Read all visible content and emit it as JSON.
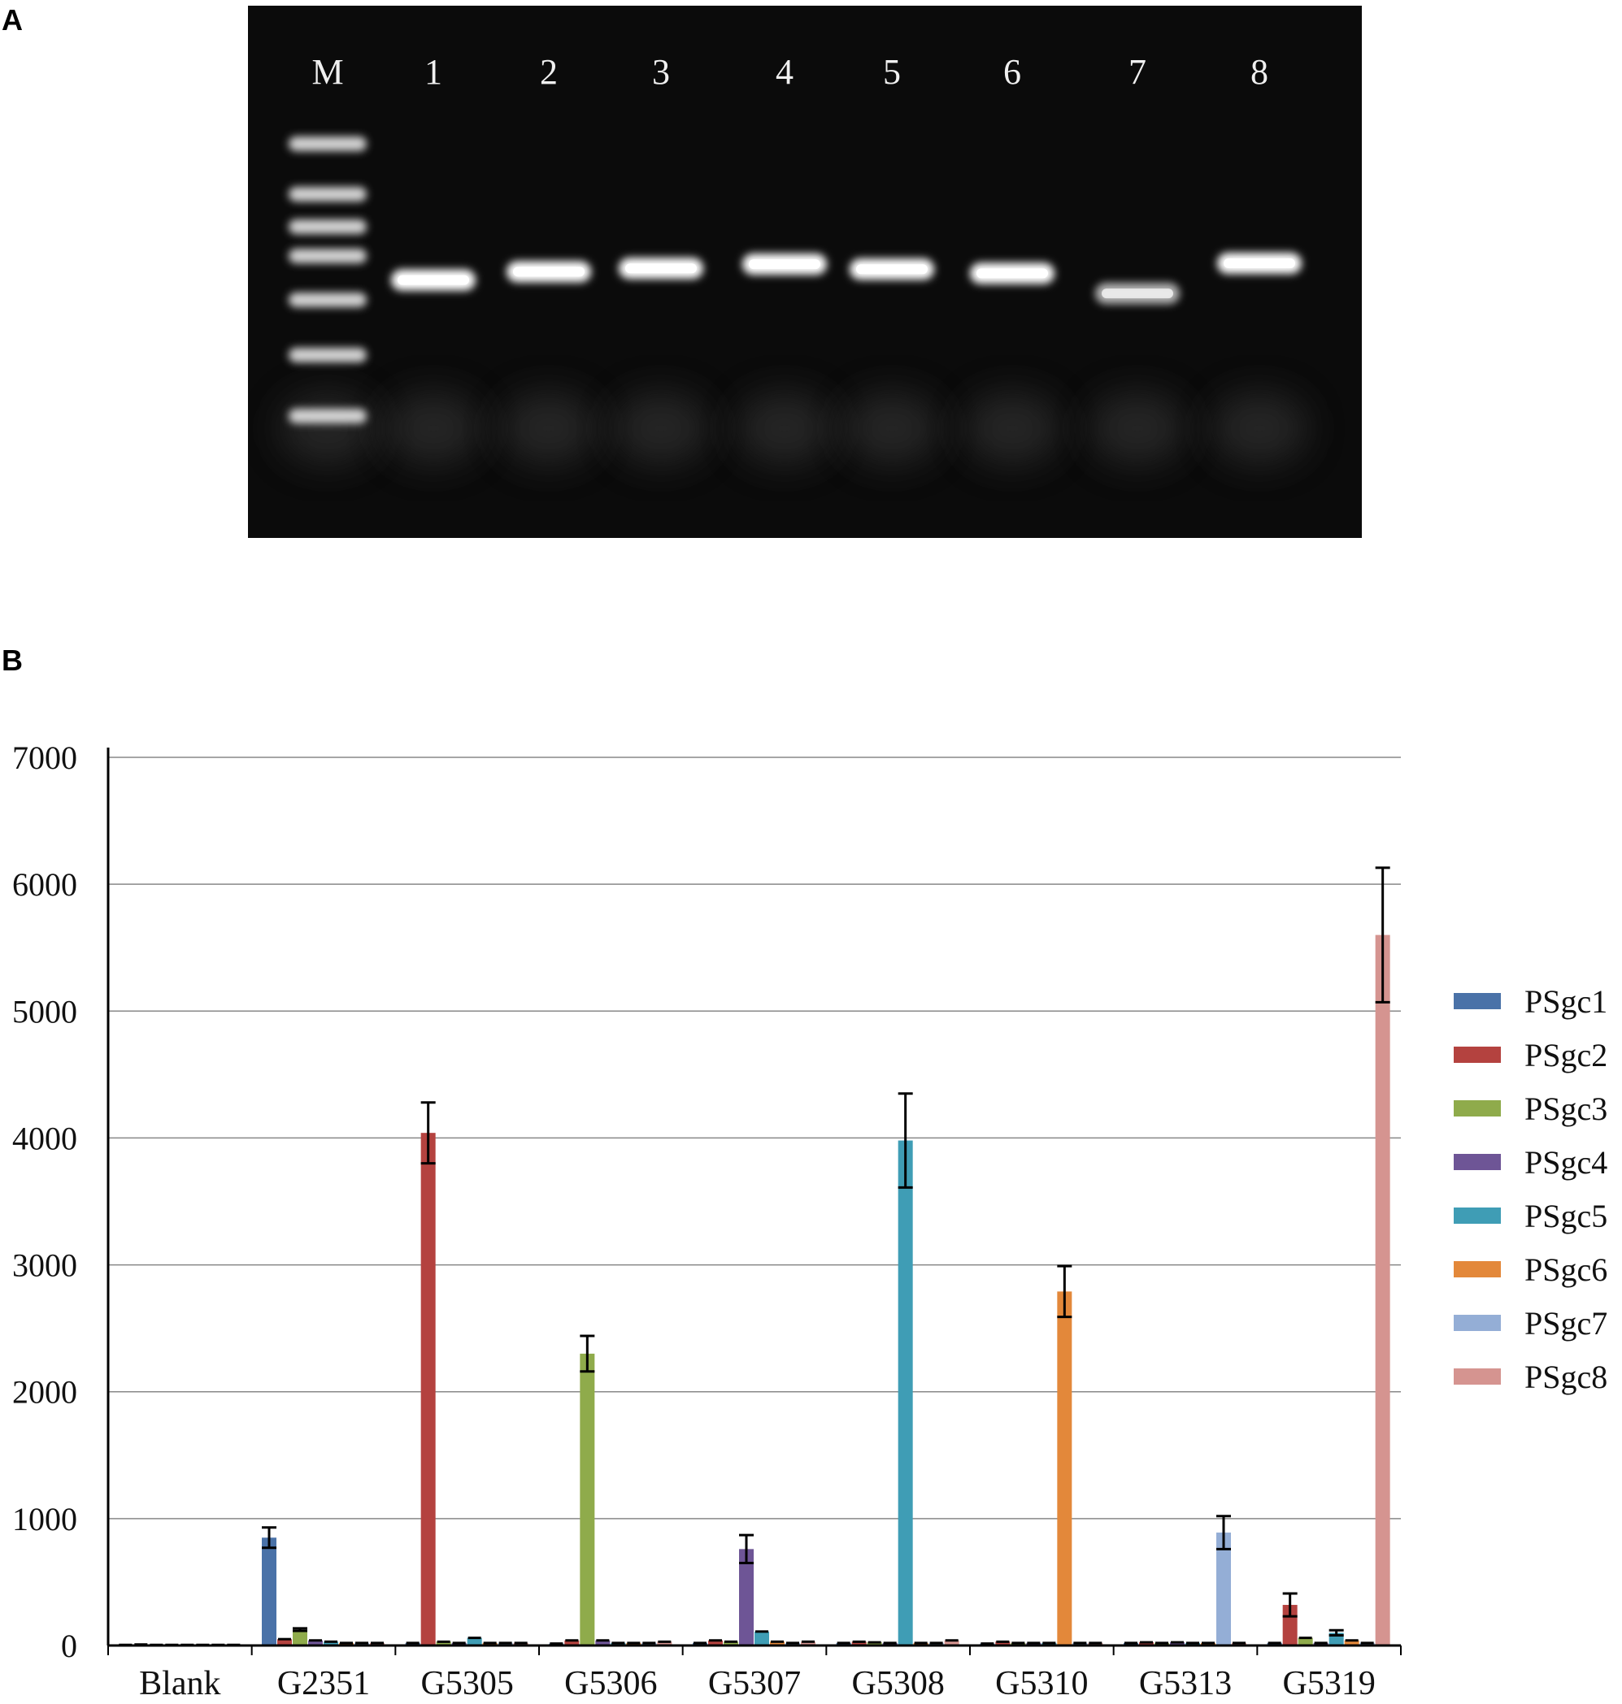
{
  "panels": {
    "a_label": "A",
    "b_label": "B"
  },
  "gel": {
    "lanes": [
      "M",
      "1",
      "2",
      "3",
      "4",
      "5",
      "6",
      "7",
      "8"
    ],
    "sample_band_levels_relative": [
      0.78,
      0.88,
      0.92,
      0.97,
      0.91,
      0.86,
      0.62,
      0.98
    ]
  },
  "chart_data": {
    "type": "bar",
    "title": "",
    "xlabel": "",
    "ylabel": "",
    "ylim": [
      0,
      7000
    ],
    "yticks": [
      0,
      1000,
      2000,
      3000,
      4000,
      5000,
      6000,
      7000
    ],
    "grid": true,
    "legend_position": "right",
    "categories": [
      "Blank",
      "G2351",
      "G5305",
      "G5306",
      "G5307",
      "G5308",
      "G5310",
      "G5313",
      "G5319"
    ],
    "series": [
      {
        "name": "PSgc1",
        "color": "#4a72a8",
        "values": [
          5,
          850,
          20,
          15,
          20,
          20,
          15,
          20,
          20
        ],
        "errors": [
          0,
          80,
          0,
          0,
          0,
          0,
          0,
          0,
          0
        ]
      },
      {
        "name": "PSgc2",
        "color": "#b4423f",
        "values": [
          8,
          50,
          4040,
          40,
          40,
          30,
          30,
          25,
          320
        ],
        "errors": [
          0,
          0,
          240,
          0,
          0,
          0,
          0,
          0,
          90
        ]
      },
      {
        "name": "PSgc3",
        "color": "#8fab4b",
        "values": [
          5,
          125,
          30,
          2300,
          30,
          25,
          20,
          20,
          60
        ],
        "errors": [
          0,
          10,
          0,
          140,
          0,
          0,
          0,
          0,
          0
        ]
      },
      {
        "name": "PSgc4",
        "color": "#6e5596",
        "values": [
          5,
          40,
          20,
          40,
          760,
          20,
          20,
          25,
          20
        ],
        "errors": [
          0,
          0,
          0,
          0,
          110,
          0,
          0,
          0,
          0
        ]
      },
      {
        "name": "PSgc5",
        "color": "#3f9db5",
        "values": [
          5,
          30,
          60,
          20,
          110,
          3980,
          20,
          20,
          100
        ],
        "errors": [
          0,
          0,
          0,
          0,
          0,
          370,
          0,
          0,
          20
        ]
      },
      {
        "name": "PSgc6",
        "color": "#e3883a",
        "values": [
          5,
          20,
          20,
          20,
          30,
          20,
          2790,
          20,
          40
        ],
        "errors": [
          0,
          0,
          0,
          0,
          0,
          0,
          200,
          0,
          0
        ]
      },
      {
        "name": "PSgc7",
        "color": "#94aed6",
        "values": [
          5,
          20,
          20,
          20,
          20,
          20,
          20,
          890,
          20
        ],
        "errors": [
          0,
          0,
          0,
          0,
          0,
          0,
          0,
          130,
          0
        ]
      },
      {
        "name": "PSgc8",
        "color": "#d59490",
        "values": [
          5,
          20,
          20,
          30,
          30,
          40,
          20,
          20,
          5600
        ],
        "errors": [
          0,
          0,
          0,
          0,
          0,
          0,
          0,
          0,
          530
        ]
      }
    ]
  }
}
